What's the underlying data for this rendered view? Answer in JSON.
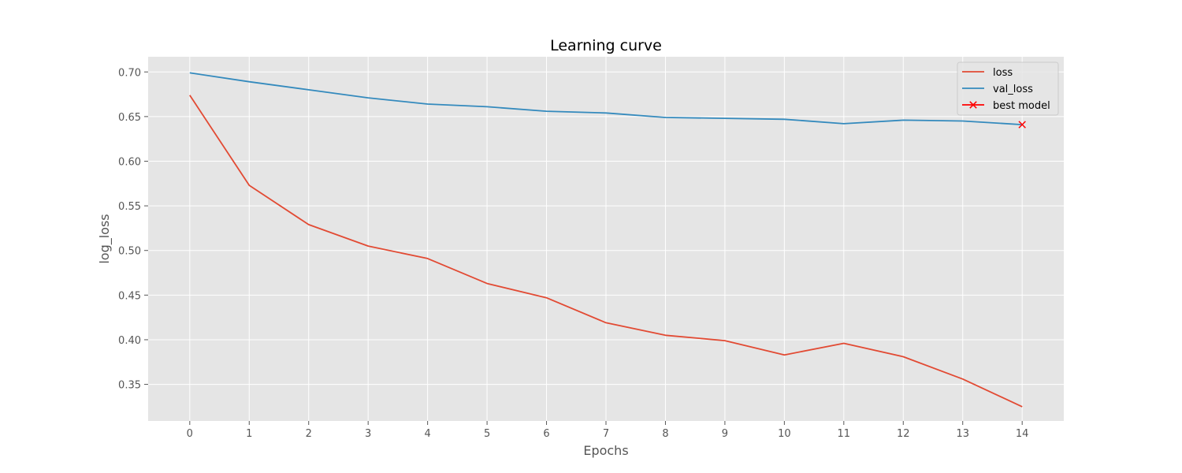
{
  "chart_data": {
    "type": "line",
    "title": "Learning curve",
    "xlabel": "Epochs",
    "ylabel": "log_loss",
    "x": [
      0,
      1,
      2,
      3,
      4,
      5,
      6,
      7,
      8,
      9,
      10,
      11,
      12,
      13,
      14
    ],
    "xlim": [
      -0.7,
      14.7
    ],
    "ylim": [
      0.309,
      0.717
    ],
    "xticks": [
      0,
      1,
      2,
      3,
      4,
      5,
      6,
      7,
      8,
      9,
      10,
      11,
      12,
      13,
      14
    ],
    "yticks": [
      0.35,
      0.4,
      0.45,
      0.5,
      0.55,
      0.6,
      0.65,
      0.7
    ],
    "ytick_labels": [
      "0.35",
      "0.40",
      "0.45",
      "0.50",
      "0.55",
      "0.60",
      "0.65",
      "0.70"
    ],
    "grid": true,
    "legend_position": "top-right",
    "series": [
      {
        "name": "loss",
        "color": "#E24A33",
        "values": [
          0.674,
          0.573,
          0.529,
          0.505,
          0.491,
          0.463,
          0.447,
          0.419,
          0.405,
          0.399,
          0.383,
          0.396,
          0.381,
          0.356,
          0.325
        ]
      },
      {
        "name": "val_loss",
        "color": "#348ABD",
        "values": [
          0.699,
          0.689,
          0.68,
          0.671,
          0.664,
          0.661,
          0.656,
          0.654,
          0.649,
          0.648,
          0.647,
          0.642,
          0.646,
          0.645,
          0.641
        ]
      }
    ],
    "markers": [
      {
        "name": "best model",
        "color": "#FF0000",
        "marker": "x",
        "x": 14,
        "y": 0.641
      }
    ]
  }
}
